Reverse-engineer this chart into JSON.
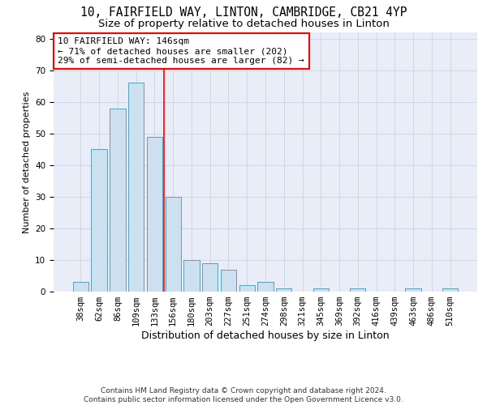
{
  "title1": "10, FAIRFIELD WAY, LINTON, CAMBRIDGE, CB21 4YP",
  "title2": "Size of property relative to detached houses in Linton",
  "xlabel": "Distribution of detached houses by size in Linton",
  "ylabel": "Number of detached properties",
  "bins": [
    "38sqm",
    "62sqm",
    "86sqm",
    "109sqm",
    "133sqm",
    "156sqm",
    "180sqm",
    "203sqm",
    "227sqm",
    "251sqm",
    "274sqm",
    "298sqm",
    "321sqm",
    "345sqm",
    "369sqm",
    "392sqm",
    "416sqm",
    "439sqm",
    "463sqm",
    "486sqm",
    "510sqm"
  ],
  "values": [
    3,
    45,
    58,
    66,
    49,
    30,
    10,
    9,
    7,
    2,
    3,
    1,
    0,
    1,
    0,
    1,
    0,
    0,
    1,
    0,
    1
  ],
  "bar_color": "#cce0f0",
  "bar_edge_color": "#5a9fc0",
  "vline_color": "red",
  "vline_x_index": 4.5,
  "annotation_text_line1": "10 FAIRFIELD WAY: 146sqm",
  "annotation_text_line2": "← 71% of detached houses are smaller (202)",
  "annotation_text_line3": "29% of semi-detached houses are larger (82) →",
  "annotation_box_color": "white",
  "annotation_box_edge": "red",
  "ylim": [
    0,
    82
  ],
  "yticks": [
    0,
    10,
    20,
    30,
    40,
    50,
    60,
    70,
    80
  ],
  "grid_color": "#c8d4e8",
  "bg_color": "#e8edf8",
  "footer_line1": "Contains HM Land Registry data © Crown copyright and database right 2024.",
  "footer_line2": "Contains public sector information licensed under the Open Government Licence v3.0.",
  "title1_fontsize": 10.5,
  "title2_fontsize": 9.5,
  "xlabel_fontsize": 9,
  "ylabel_fontsize": 8,
  "tick_fontsize": 7.5,
  "annotation_fontsize": 8,
  "footer_fontsize": 6.5
}
